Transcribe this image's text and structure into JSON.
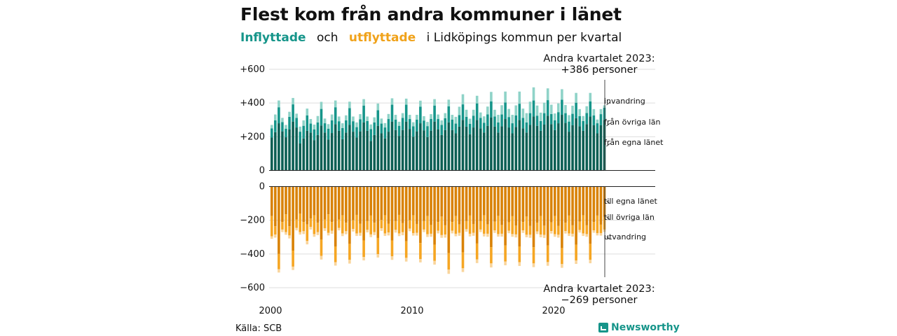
{
  "header": {
    "title": "Flest kom från andra kommuner i länet",
    "subtitle_in": "Inflyttade",
    "subtitle_and": "och",
    "subtitle_out": "utflyttade",
    "subtitle_rest": "i Lidköpings kommun per kvartal"
  },
  "footer": {
    "source": "Källa: SCB",
    "brand": "Newsworthy"
  },
  "colors": {
    "in_dark": "#0c5f54",
    "in_mid": "#16958a",
    "in_light": "#8fd3c8",
    "out_dark": "#d98206",
    "out_mid": "#f6a623",
    "out_light": "#f9d59c"
  },
  "chart_data": {
    "type": "bar",
    "stacked": true,
    "x_start": "2000 Q1",
    "x_end": "2023 Q2",
    "x_ticks": [
      "2000",
      "2010",
      "2020"
    ],
    "top_panel": {
      "y_ticks": [
        "+600",
        "+400",
        "+200",
        "0"
      ],
      "ylim": [
        0,
        600
      ],
      "annotation": [
        "Andra kvartalet 2023:",
        "+386 personer"
      ],
      "legend": [
        "invandring",
        "från övriga län",
        "från egna länet"
      ],
      "series": [
        {
          "name": "från egna länet",
          "values": [
            195,
            227,
            280,
            232,
            197,
            243,
            290,
            255,
            160,
            190,
            235,
            225,
            180,
            210,
            267,
            225,
            183,
            222,
            275,
            235,
            185,
            225,
            270,
            230,
            195,
            232,
            285,
            235,
            175,
            210,
            265,
            220,
            190,
            230,
            290,
            240,
            205,
            240,
            290,
            245,
            200,
            232,
            280,
            238,
            198,
            236,
            290,
            243,
            210,
            240,
            285,
            240,
            220,
            260,
            300,
            260,
            215,
            255,
            300,
            250,
            225,
            265,
            315,
            260,
            225,
            262,
            305,
            255,
            220,
            258,
            300,
            250,
            225,
            270,
            320,
            265,
            235,
            272,
            325,
            275,
            240,
            280,
            330,
            282,
            230,
            268,
            310,
            262,
            235,
            275,
            320,
            268,
            220,
            268,
            300
          ]
        },
        {
          "name": "från övriga län",
          "values": [
            55,
            70,
            95,
            55,
            50,
            75,
            102,
            57,
            70,
            75,
            92,
            53,
            64,
            75,
            98,
            55,
            65,
            75,
            100,
            57,
            67,
            72,
            100,
            62,
            62,
            72,
            100,
            58,
            70,
            75,
            92,
            58,
            65,
            75,
            100,
            62,
            60,
            72,
            100,
            60,
            62,
            70,
            98,
            58,
            65,
            70,
            95,
            62,
            60,
            70,
            95,
            62,
            58,
            68,
            92,
            58,
            62,
            70,
            98,
            62,
            58,
            68,
            95,
            60,
            60,
            70,
            98,
            62,
            60,
            68,
            96,
            62,
            60,
            70,
            95,
            60,
            58,
            68,
            92,
            60,
            58,
            66,
            90,
            58,
            60,
            68,
            92,
            60,
            58,
            66,
            90,
            58,
            60,
            66,
            72
          ]
        },
        {
          "name": "invandring",
          "values": [
            20,
            35,
            40,
            25,
            23,
            30,
            38,
            25,
            30,
            32,
            40,
            27,
            28,
            38,
            42,
            28,
            27,
            35,
            40,
            28,
            28,
            30,
            38,
            28,
            28,
            30,
            38,
            27,
            28,
            30,
            40,
            30,
            26,
            30,
            38,
            28,
            24,
            28,
            36,
            25,
            24,
            28,
            36,
            26,
            25,
            28,
            38,
            27,
            27,
            30,
            40,
            28,
            40,
            50,
            60,
            42,
            30,
            35,
            45,
            32,
            38,
            46,
            56,
            40,
            45,
            55,
            65,
            48,
            50,
            60,
            72,
            55,
            55,
            68,
            78,
            60,
            50,
            62,
            70,
            55,
            40,
            52,
            62,
            48,
            38,
            48,
            58,
            42,
            30,
            40,
            50,
            38,
            22,
            30,
            14
          ]
        }
      ]
    },
    "bottom_panel": {
      "y_ticks": [
        "0",
        "−200",
        "−400",
        "−600"
      ],
      "ylim": [
        -600,
        0
      ],
      "annotation": [
        "Andra kvartalet 2023:",
        "−269 personer"
      ],
      "legend": [
        "till egna länet",
        "till övriga län",
        "utvandring"
      ],
      "series": [
        {
          "name": "till egna länet",
          "values": [
            -175,
            -235,
            -400,
            -210,
            -165,
            -235,
            -380,
            -195,
            -160,
            -210,
            -225,
            -190,
            -170,
            -215,
            -315,
            -195,
            -165,
            -210,
            -355,
            -195,
            -170,
            -215,
            -340,
            -200,
            -168,
            -220,
            -320,
            -205,
            -172,
            -215,
            -305,
            -198,
            -170,
            -220,
            -320,
            -205,
            -168,
            -216,
            -325,
            -200,
            -170,
            -222,
            -335,
            -205,
            -175,
            -228,
            -345,
            -210,
            -178,
            -230,
            -395,
            -210,
            -175,
            -225,
            -390,
            -205,
            -172,
            -222,
            -338,
            -205,
            -170,
            -225,
            -360,
            -208,
            -174,
            -228,
            -350,
            -212,
            -176,
            -232,
            -355,
            -210,
            -178,
            -234,
            -360,
            -214,
            -175,
            -232,
            -350,
            -212,
            -175,
            -234,
            -365,
            -214,
            -172,
            -230,
            -345,
            -208,
            -170,
            -230,
            -340,
            -210,
            -172,
            -226,
            -180
          ]
        },
        {
          "name": "till övriga län",
          "values": [
            -120,
            -50,
            -90,
            -45,
            -105,
            -55,
            -95,
            -50,
            -110,
            -55,
            -98,
            -50,
            -112,
            -55,
            -96,
            -52,
            -110,
            -52,
            -94,
            -50,
            -108,
            -50,
            -95,
            -52,
            -110,
            -55,
            -98,
            -52,
            -112,
            -55,
            -96,
            -50,
            -108,
            -52,
            -94,
            -52,
            -110,
            -55,
            -98,
            -50,
            -106,
            -52,
            -95,
            -50,
            -108,
            -52,
            -96,
            -52,
            -110,
            -55,
            -98,
            -52,
            -105,
            -50,
            -95,
            -48,
            -108,
            -52,
            -94,
            -50,
            -110,
            -55,
            -96,
            -52,
            -108,
            -52,
            -95,
            -50,
            -106,
            -52,
            -94,
            -50,
            -108,
            -52,
            -96,
            -52,
            -110,
            -55,
            -98,
            -52,
            -108,
            -52,
            -95,
            -50,
            -106,
            -50,
            -94,
            -50,
            -108,
            -52,
            -95,
            -50,
            -104,
            -50,
            -75
          ]
        },
        {
          "name": "utvandring",
          "values": [
            -15,
            -18,
            -20,
            -15,
            -16,
            -18,
            -20,
            -15,
            -15,
            -17,
            -20,
            -15,
            -16,
            -18,
            -22,
            -16,
            -15,
            -18,
            -20,
            -15,
            -16,
            -18,
            -22,
            -15,
            -15,
            -17,
            -20,
            -15,
            -16,
            -18,
            -20,
            -15,
            -15,
            -18,
            -21,
            -16,
            -16,
            -18,
            -22,
            -15,
            -15,
            -17,
            -20,
            -15,
            -16,
            -18,
            -22,
            -16,
            -16,
            -18,
            -25,
            -16,
            -15,
            -17,
            -22,
            -15,
            -16,
            -18,
            -22,
            -15,
            -16,
            -18,
            -24,
            -15,
            -15,
            -17,
            -22,
            -15,
            -16,
            -18,
            -22,
            -15,
            -15,
            -18,
            -22,
            -16,
            -16,
            -18,
            -22,
            -15,
            -15,
            -17,
            -22,
            -15,
            -15,
            -17,
            -20,
            -15,
            -15,
            -16,
            -20,
            -14,
            -14,
            -15,
            -14
          ]
        }
      ]
    }
  }
}
